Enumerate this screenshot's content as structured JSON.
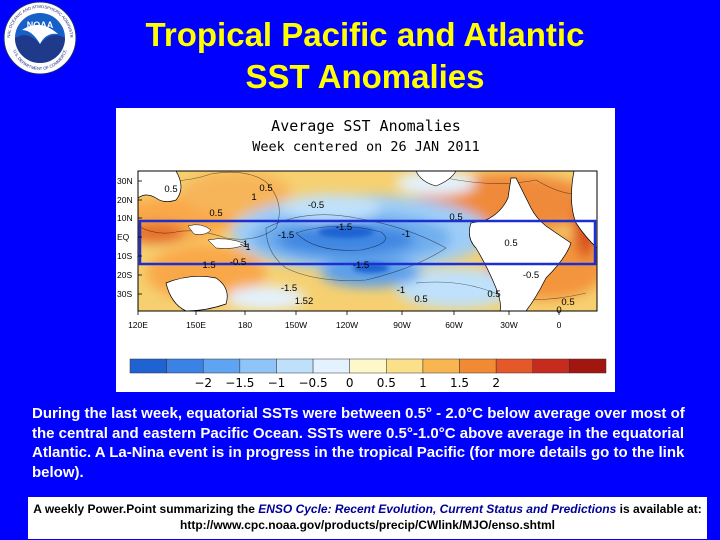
{
  "logo": {
    "name": "NOAA",
    "ring_text": "NATIONAL OCEANIC AND ATMOSPHERIC ADMINISTRATION",
    "ring_text_bottom": "U.S. DEPARTMENT OF COMMERCE"
  },
  "title": {
    "line1": "Tropical Pacific and Atlantic",
    "line2": "SST Anomalies"
  },
  "map": {
    "title_line1": "Average SST Anomalies",
    "title_line2": "Week centered on 26 JAN 2011",
    "lat_labels": [
      "30N",
      "20N",
      "10N",
      "EQ",
      "10S",
      "20S",
      "30S"
    ],
    "lon_labels": [
      "120E",
      "150E",
      "180",
      "150W",
      "120W",
      "90W",
      "60W",
      "30W",
      "0"
    ],
    "contour_labels": [
      "0.5",
      "0.5",
      "1",
      "-0.5",
      "0.5",
      "0.5",
      "-1.5",
      "-1.5",
      "-1",
      "-1",
      "0.5",
      "1",
      "-1.5",
      "-0.5",
      "1.5",
      "-1.5",
      "-1",
      "0.5",
      "1.52",
      "0.5",
      "0.5",
      "-0.5",
      "0"
    ],
    "colorbar": {
      "tick_labels": [
        "−2",
        "−1.5",
        "−1",
        "−0.5",
        "0",
        "0.5",
        "1",
        "1.5",
        "2"
      ],
      "colors": [
        "#1f63d2",
        "#3a82e6",
        "#5ea4f2",
        "#8ec4f8",
        "#bee0fb",
        "#e3f2fe",
        "#fdf8c9",
        "#fbe08a",
        "#f9b550",
        "#f18a33",
        "#e4582a",
        "#c72b1e",
        "#a3150f"
      ]
    },
    "highlight_color": "#1d2fd0"
  },
  "description": "During the last week, equatorial SSTs were between 0.5° - 2.0°C below average over most of the central and eastern Pacific Ocean. SSTs were 0.5°-1.0°C above average in the equatorial Atlantic. A La-Nina event is in progress in the tropical Pacific (for more details go to the link below).",
  "footer": {
    "prefix": "A weekly Power.Point summarizing the ",
    "emphasis": "ENSO Cycle: Recent Evolution, Current Status and Predictions",
    "suffix": " is available at:",
    "url": "http://www.cpc.noaa.gov/products/precip/CWlink/MJO/enso.shtml"
  }
}
